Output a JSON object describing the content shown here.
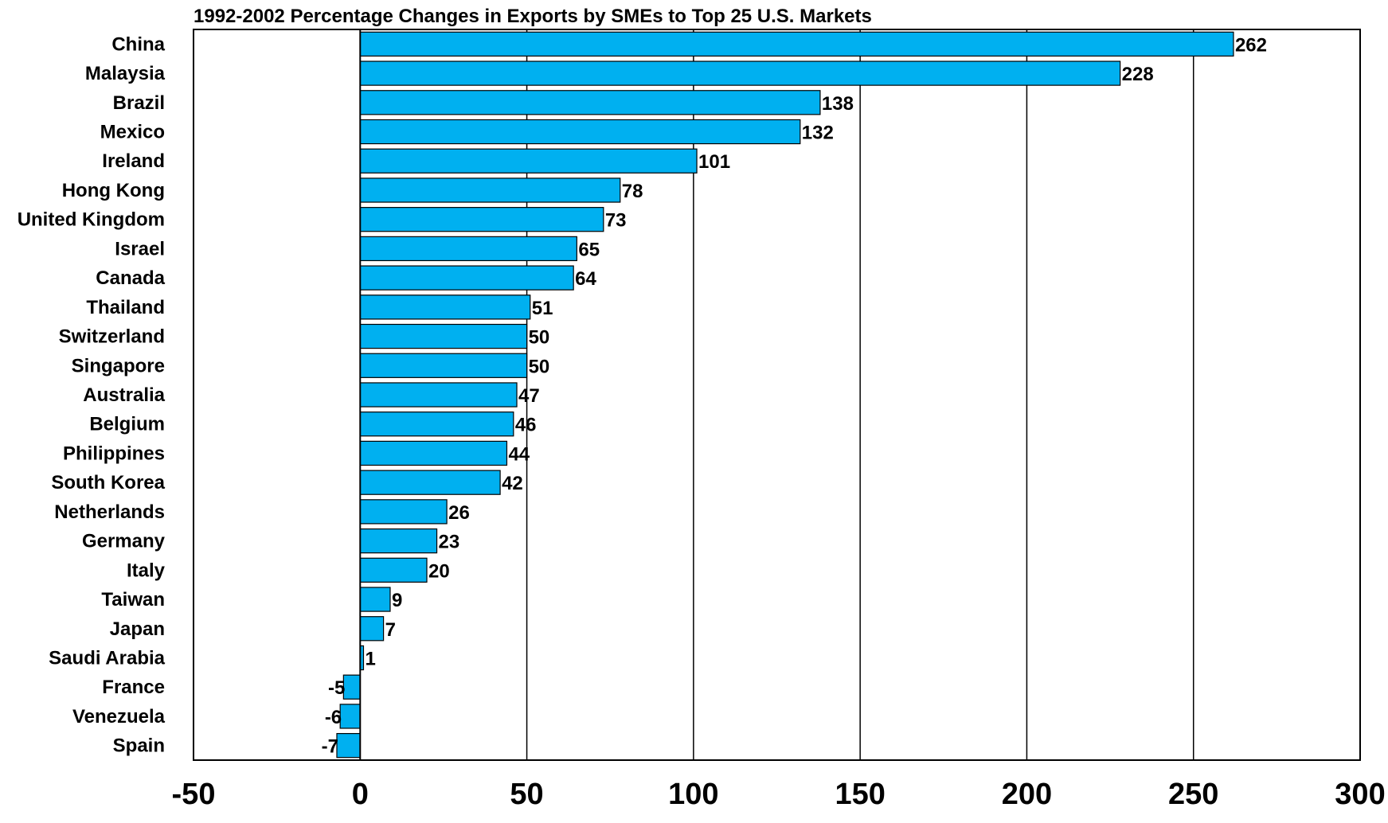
{
  "chart_data": {
    "type": "bar",
    "orientation": "horizontal",
    "title": "1992-2002 Percentage Changes in Exports by SMEs to Top 25 U.S. Markets",
    "xlabel": "",
    "ylabel": "",
    "xlim": [
      -50,
      300
    ],
    "xticks": [
      -50,
      0,
      50,
      100,
      150,
      200,
      250,
      300
    ],
    "xgrid": true,
    "legend": "none",
    "bar_color": "#00B0F0",
    "categories": [
      "China",
      "Malaysia",
      "Brazil",
      "Mexico",
      "Ireland",
      "Hong Kong",
      "United Kingdom",
      "Israel",
      "Canada",
      "Thailand",
      "Switzerland",
      "Singapore",
      "Australia",
      "Belgium",
      "Philippines",
      "South Korea",
      "Netherlands",
      "Germany",
      "Italy",
      "Taiwan",
      "Japan",
      "Saudi Arabia",
      "France",
      "Venezuela",
      "Spain"
    ],
    "values": [
      262,
      228,
      138,
      132,
      101,
      78,
      73,
      65,
      64,
      51,
      50,
      50,
      47,
      46,
      44,
      42,
      26,
      23,
      20,
      9,
      7,
      1,
      -5,
      -6,
      -7
    ]
  }
}
